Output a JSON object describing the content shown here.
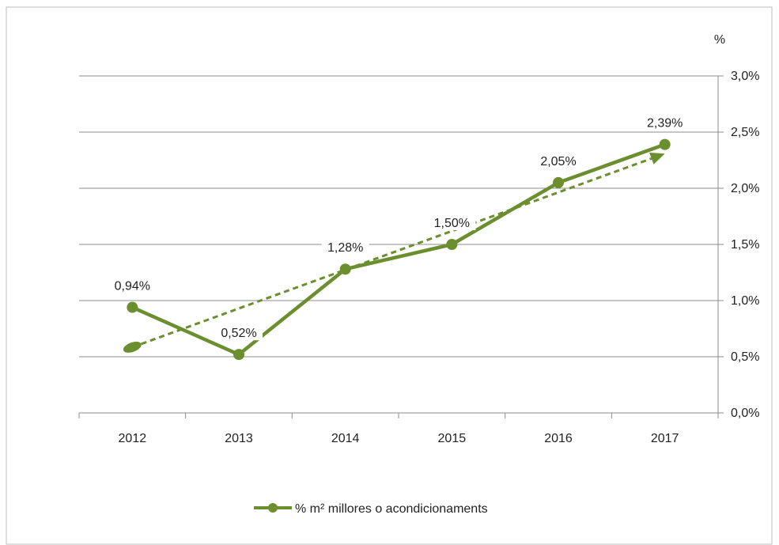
{
  "chart_data": {
    "type": "line",
    "categories": [
      "2012",
      "2013",
      "2014",
      "2015",
      "2016",
      "2017"
    ],
    "series": [
      {
        "name": "% m² millores o acondicionaments",
        "values": [
          0.94,
          0.52,
          1.28,
          1.5,
          2.05,
          2.39
        ],
        "labels": [
          "0,94%",
          "0,52%",
          "1,28%",
          "1,50%",
          "2,05%",
          "2,39%"
        ],
        "color": "#6b8e2f"
      }
    ],
    "trendline": {
      "style": "dashed",
      "arrow": true,
      "color": "#6b8e2f"
    },
    "y_axis": {
      "title": "%",
      "position": "right",
      "ylim": [
        0,
        3.0
      ],
      "ticks": [
        0,
        0.5,
        1.0,
        1.5,
        2.0,
        2.5,
        3.0
      ],
      "tick_labels": [
        "0,0%",
        "0,5%",
        "1,0%",
        "1,5%",
        "2,0%",
        "2,5%",
        "3,0%"
      ]
    },
    "grid": true,
    "legend": {
      "position": "bottom"
    }
  }
}
